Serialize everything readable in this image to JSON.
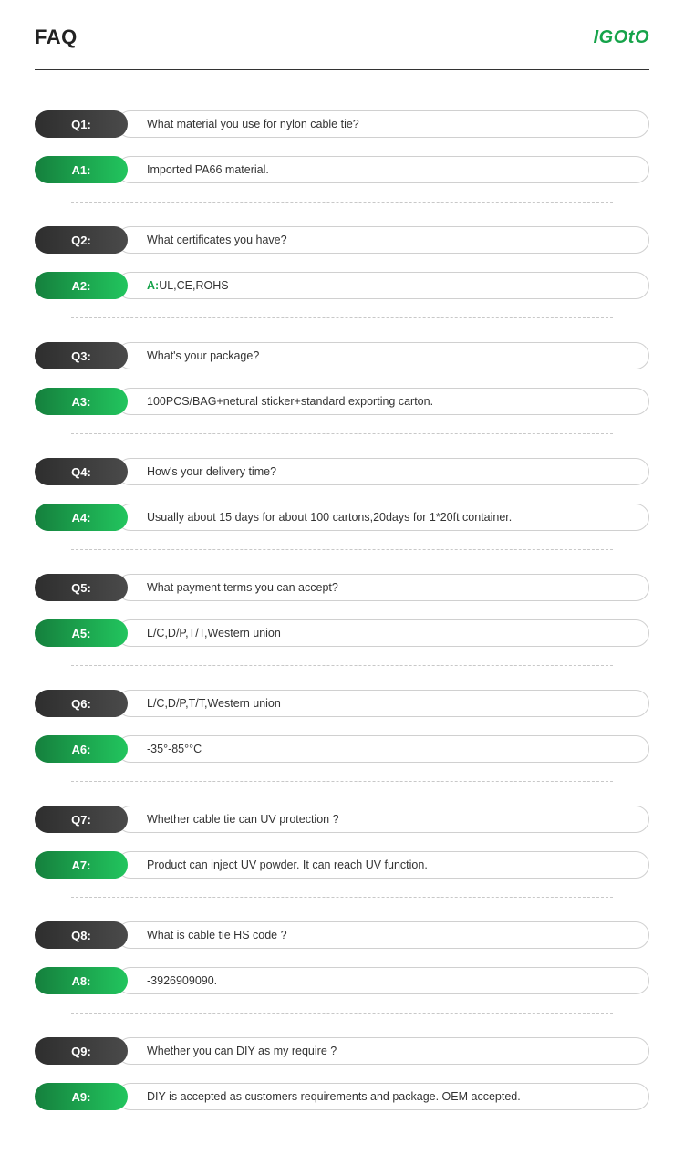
{
  "header": {
    "title": "FAQ",
    "logo": "IGOtO"
  },
  "colors": {
    "q_gradient_start": "#2e2e2e",
    "q_gradient_end": "#4a4a4a",
    "a_gradient_start": "#15803d",
    "a_gradient_end": "#22c55e",
    "brand_green": "#16a34a",
    "border": "#d0d0d0",
    "divider": "#c8c8c8",
    "text": "#333333"
  },
  "faq": [
    {
      "q_label": "Q1:",
      "q_text": "What material you use for nylon cable tie?",
      "a_label": "A1:",
      "a_prefix": "",
      "a_text": "Imported PA66 material."
    },
    {
      "q_label": "Q2:",
      "q_text": "What certificates you have?",
      "a_label": "A2:",
      "a_prefix": "A:",
      "a_text": "UL,CE,ROHS"
    },
    {
      "q_label": "Q3:",
      "q_text": "What's your package?",
      "a_label": "A3:",
      "a_prefix": "",
      "a_text": "100PCS/BAG+netural sticker+standard exporting carton."
    },
    {
      "q_label": "Q4:",
      "q_text": "How's your delivery time?",
      "a_label": "A4:",
      "a_prefix": "",
      "a_text": "Usually about 15 days for about 100 cartons,20days for 1*20ft container."
    },
    {
      "q_label": "Q5:",
      "q_text": "What payment terms you can accept?",
      "a_label": "A5:",
      "a_prefix": "",
      "a_text": "L/C,D/P,T/T,Western union"
    },
    {
      "q_label": "Q6:",
      "q_text": "L/C,D/P,T/T,Western union",
      "a_label": "A6:",
      "a_prefix": "",
      "a_text": "-35°-85°°C"
    },
    {
      "q_label": "Q7:",
      "q_text": "Whether cable tie can UV protection ?",
      "a_label": "A7:",
      "a_prefix": "",
      "a_text": "Product can inject UV powder. It can reach UV function."
    },
    {
      "q_label": "Q8:",
      "q_text": "What is cable tie HS code ?",
      "a_label": "A8:",
      "a_prefix": "",
      "a_text": "-3926909090."
    },
    {
      "q_label": "Q9:",
      "q_text": "Whether you can DIY as my require ?",
      "a_label": "A9:",
      "a_prefix": "",
      "a_text": "DIY is accepted as customers requirements and package.  OEM accepted."
    }
  ]
}
